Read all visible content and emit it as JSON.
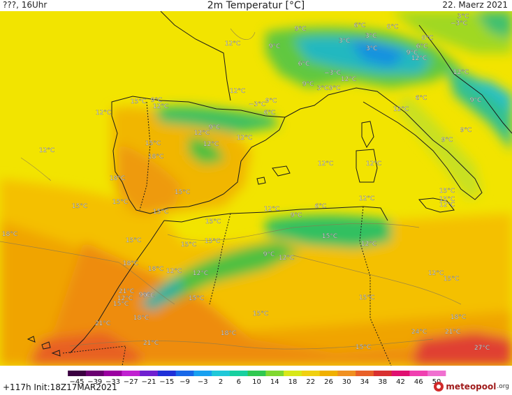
{
  "header": {
    "left": "???, 16Uhr",
    "title": "2m Temperatur [°C]",
    "date": "22. Maerz 2021"
  },
  "footer": {
    "run": "+117h  Init:18Z17MAR2021",
    "brand": "meteopool",
    "brand_tld": ".org"
  },
  "legend": {
    "ticks": [
      "−45",
      "−39",
      "−33",
      "−27",
      "−21",
      "−15",
      "−9",
      "−3",
      "2",
      "6",
      "10",
      "14",
      "18",
      "22",
      "26",
      "30",
      "34",
      "38",
      "42",
      "46",
      "50"
    ],
    "colors": [
      "#3a0040",
      "#6a0070",
      "#9a00a0",
      "#c020d0",
      "#7020d0",
      "#2030d8",
      "#1868e8",
      "#18a0f0",
      "#20c8d8",
      "#18d0a0",
      "#30c850",
      "#80d830",
      "#d8e818",
      "#f0d010",
      "#f0b000",
      "#f09020",
      "#e86028",
      "#d83030",
      "#e01070",
      "#f040b0",
      "#f070d0"
    ]
  },
  "temperature_labels": [
    {
      "id": "t1",
      "text": "3°C"
    },
    {
      "id": "t2",
      "text": "−3°C"
    },
    {
      "id": "t3",
      "text": "9°C"
    },
    {
      "id": "t4",
      "text": "6°C"
    },
    {
      "id": "t5",
      "text": "0°C"
    },
    {
      "id": "t6",
      "text": "3°C"
    },
    {
      "id": "t7",
      "text": "3°C"
    },
    {
      "id": "t8",
      "text": "0°C"
    },
    {
      "id": "t9",
      "text": "3°C"
    },
    {
      "id": "t10",
      "text": "6°C"
    },
    {
      "id": "t11",
      "text": "9°C"
    },
    {
      "id": "t12",
      "text": "12°C"
    },
    {
      "id": "t13",
      "text": "12°C"
    },
    {
      "id": "t14",
      "text": "9°C"
    },
    {
      "id": "t15",
      "text": "6°C"
    },
    {
      "id": "t16",
      "text": "−3°C"
    },
    {
      "id": "t17",
      "text": "12°C"
    },
    {
      "id": "t18",
      "text": "9°C"
    },
    {
      "id": "t19",
      "text": "12°C"
    },
    {
      "id": "t20",
      "text": "9°C"
    },
    {
      "id": "t21",
      "text": "3°C"
    },
    {
      "id": "t22",
      "text": "12°C"
    },
    {
      "id": "t23",
      "text": "12°C"
    },
    {
      "id": "t24",
      "text": "15°C"
    },
    {
      "id": "t25",
      "text": "9°C"
    },
    {
      "id": "t26",
      "text": "12°C"
    },
    {
      "id": "t27",
      "text": "−3°C"
    },
    {
      "id": "t28",
      "text": "9°C"
    },
    {
      "id": "t29",
      "text": "6°C"
    },
    {
      "id": "t30",
      "text": "12°C"
    },
    {
      "id": "t31",
      "text": "6°C"
    },
    {
      "id": "t32",
      "text": "9°C"
    },
    {
      "id": "t33",
      "text": "12°C"
    },
    {
      "id": "t34",
      "text": "9°C"
    },
    {
      "id": "t35",
      "text": "12°C"
    },
    {
      "id": "t36",
      "text": "12°C"
    },
    {
      "id": "t37",
      "text": "15°C"
    },
    {
      "id": "t38",
      "text": "9°C"
    },
    {
      "id": "t39",
      "text": "12°C"
    },
    {
      "id": "t40",
      "text": "12°C"
    },
    {
      "id": "t41",
      "text": "18°C"
    },
    {
      "id": "t42",
      "text": "12°C"
    },
    {
      "id": "t43",
      "text": "18°C"
    },
    {
      "id": "t44",
      "text": "9°C"
    },
    {
      "id": "t45",
      "text": "15°C"
    },
    {
      "id": "t46",
      "text": "15°C"
    },
    {
      "id": "t47",
      "text": "15°C"
    },
    {
      "id": "t48",
      "text": "15°C"
    },
    {
      "id": "t49",
      "text": "18°C"
    },
    {
      "id": "t50",
      "text": "15°C"
    },
    {
      "id": "t51",
      "text": "12°C"
    },
    {
      "id": "t52",
      "text": "9°C"
    },
    {
      "id": "t53",
      "text": "12°C"
    },
    {
      "id": "t54",
      "text": "6°C"
    },
    {
      "id": "t55",
      "text": "15°C"
    },
    {
      "id": "t56",
      "text": "15°C"
    },
    {
      "id": "t57",
      "text": "15°C"
    },
    {
      "id": "t58",
      "text": "15°C"
    },
    {
      "id": "t59",
      "text": "15°C"
    },
    {
      "id": "t60",
      "text": "15°C"
    },
    {
      "id": "t61",
      "text": "9°C"
    },
    {
      "id": "t62",
      "text": "12°C"
    },
    {
      "id": "t63",
      "text": "12°C"
    },
    {
      "id": "t64",
      "text": "18°C"
    },
    {
      "id": "t65",
      "text": "18°C"
    },
    {
      "id": "t66",
      "text": "12°C"
    },
    {
      "id": "t67",
      "text": "12°C"
    },
    {
      "id": "t68",
      "text": "9°C"
    },
    {
      "id": "t69",
      "text": "21°C"
    },
    {
      "id": "t70",
      "text": "12°C"
    },
    {
      "id": "t71",
      "text": "15°C"
    },
    {
      "id": "t72",
      "text": "9°C"
    },
    {
      "id": "t73",
      "text": "15°C"
    },
    {
      "id": "t74",
      "text": "15°C"
    },
    {
      "id": "t75",
      "text": "12°C"
    },
    {
      "id": "t76",
      "text": "15°C"
    },
    {
      "id": "t77",
      "text": "18°C"
    },
    {
      "id": "t78",
      "text": "21°C"
    },
    {
      "id": "t79",
      "text": "18°C"
    },
    {
      "id": "t80",
      "text": "15°C"
    },
    {
      "id": "t81",
      "text": "21°C"
    },
    {
      "id": "t82",
      "text": "18°C"
    },
    {
      "id": "t83",
      "text": "15°C"
    },
    {
      "id": "t84",
      "text": "24°C"
    },
    {
      "id": "t85",
      "text": "21°C"
    },
    {
      "id": "t86",
      "text": "27°C"
    },
    {
      "id": "t87",
      "text": "12°C"
    }
  ]
}
